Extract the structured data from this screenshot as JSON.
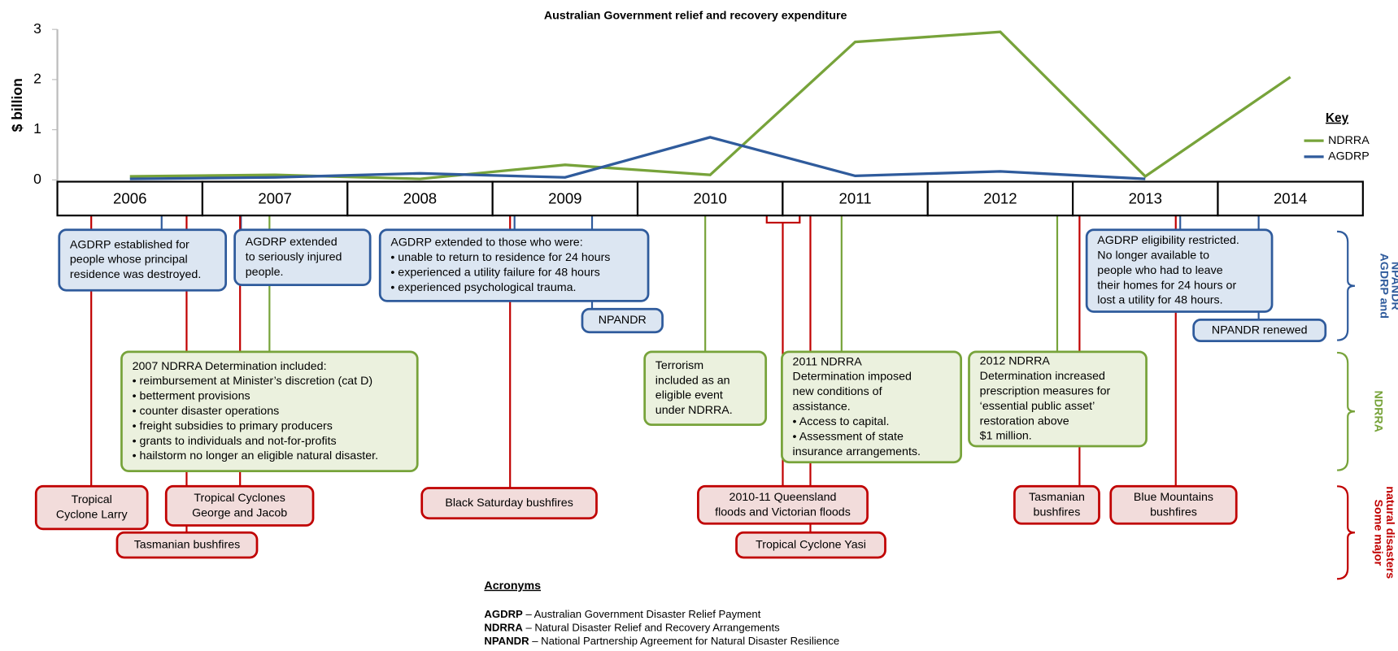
{
  "chart_data": {
    "type": "line",
    "title": "Australian Government relief and recovery expenditure",
    "y_label": "$ billion",
    "categories": [
      "2006",
      "2007",
      "2008",
      "2009",
      "2010",
      "2011",
      "2012",
      "2013",
      "2014"
    ],
    "series": [
      {
        "name": "NDRRA",
        "color": "#77a33a",
        "values": [
          0.07,
          0.1,
          0.02,
          0.3,
          0.1,
          2.75,
          2.95,
          0.07,
          2.05
        ]
      },
      {
        "name": "AGDRP",
        "color": "#2f5b9c",
        "values": [
          0.02,
          0.05,
          0.13,
          0.05,
          0.85,
          0.08,
          0.17,
          0.02,
          null
        ]
      }
    ],
    "ylim": [
      0,
      3
    ],
    "yticks": [
      0,
      1,
      2,
      3
    ],
    "legend_title": "Key",
    "legend": "right"
  },
  "panels": [
    {
      "label": [
        "AGDRP and",
        "NPANDR"
      ],
      "color": "#2f5b9c",
      "fill": "#dce6f2",
      "boxes": [
        [
          "AGDRP established for",
          "people whose principal",
          "residence was destroyed."
        ],
        [
          "AGDRP extended",
          "to seriously injured",
          "people."
        ],
        [
          "AGDRP extended to those who were:",
          "• unable to return to residence for 24 hours",
          "• experienced a utility failure for 48 hours",
          "• experienced psychological  trauma."
        ],
        [
          "NPANDR"
        ],
        [
          "AGDRP eligibility restricted.",
          "No longer available to",
          "people who had to leave",
          "their homes for 24 hours or",
          "lost a utility for 48 hours."
        ],
        [
          "NPANDR renewed"
        ]
      ]
    },
    {
      "label": [
        "NDRRA"
      ],
      "color": "#77a33a",
      "fill": "#ebf1de",
      "boxes": [
        [
          "2007 NDRRA Determination included:",
          "• reimbursement at Minister’s discretion (cat D)",
          "• betterment provisions",
          "• counter disaster operations",
          "• freight subsidies to primary producers",
          "• grants to individuals and not-for-profits",
          "• hailstorm no longer an eligible natural disaster."
        ],
        [
          "Terrorism",
          "included as an",
          "eligible event",
          "under NDRRA."
        ],
        [
          "2011 NDRRA",
          "Determination imposed",
          "new conditions of",
          "assistance.",
          "• Access to capital.",
          "• Assessment of state",
          "   insurance arrangements."
        ],
        [
          "2012 NDRRA",
          "Determination increased",
          "prescription measures for",
          "‘essential public asset’",
          "restoration above",
          "$1 million."
        ]
      ]
    },
    {
      "label": [
        "Some major",
        "natural disasters"
      ],
      "color": "#c00000",
      "fill": "#f2dcdb",
      "boxes": [
        [
          "Tropical",
          "Cyclone Larry"
        ],
        [
          "Tropical Cyclones",
          "George and Jacob"
        ],
        [
          "Tasmanian bushfires"
        ],
        [
          "Black Saturday bushfires"
        ],
        [
          "2010-11 Queensland",
          "floods and Victorian floods"
        ],
        [
          "Tropical Cyclone Yasi"
        ],
        [
          "Tasmanian",
          "bushfires"
        ],
        [
          "Blue Mountains",
          "bushfires"
        ]
      ]
    }
  ],
  "acronyms": {
    "title": "Acronyms",
    "items": [
      {
        "term": "AGDRP",
        "definition": " – Australian Government Disaster Relief Payment"
      },
      {
        "term": "NDRRA",
        "definition": " – Natural Disaster Relief and Recovery Arrangements"
      },
      {
        "term": "NPANDR",
        "definition": " – National Partnership Agreement for Natural Disaster Resilience"
      }
    ]
  }
}
